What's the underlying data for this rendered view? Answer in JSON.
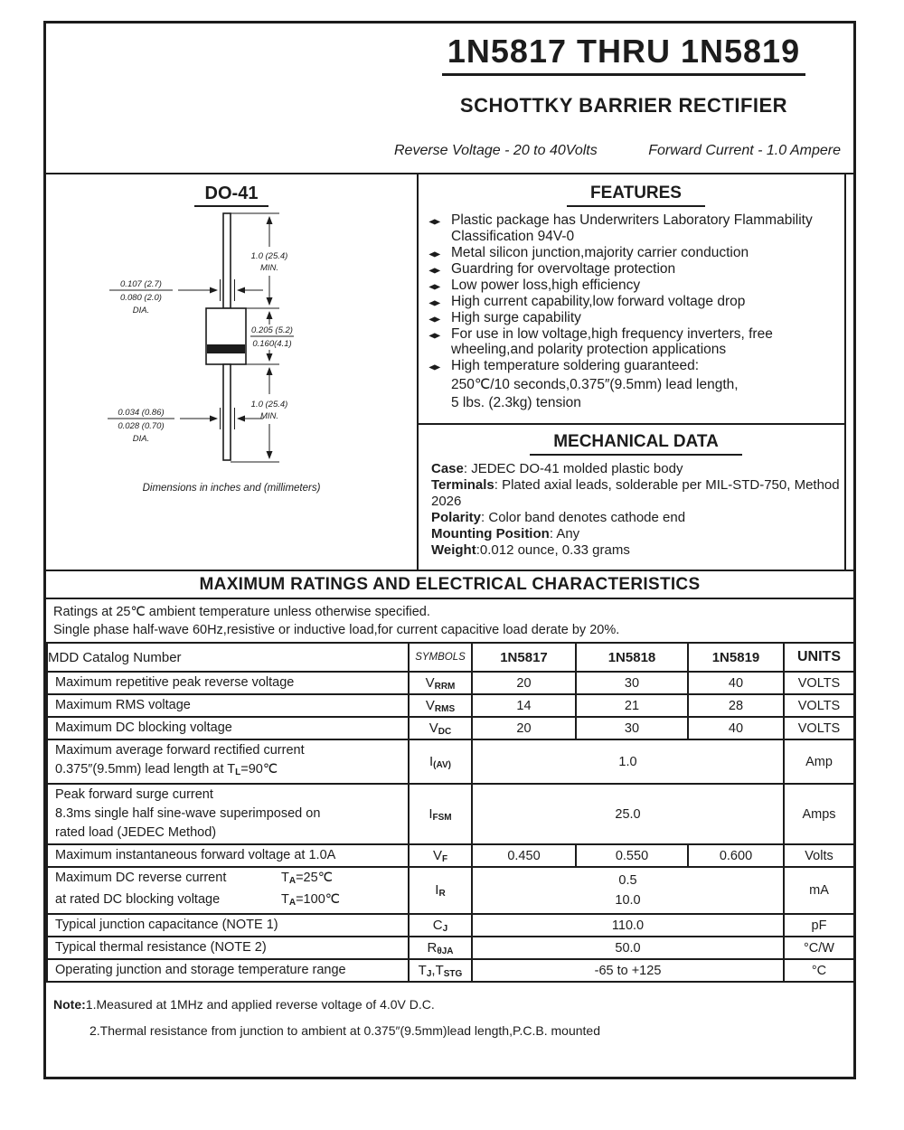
{
  "header": {
    "part_range": "1N5817 THRU 1N5819",
    "subtitle": "SCHOTTKY BARRIER RECTIFIER",
    "tagline_left": "Reverse Voltage - 20 to 40Volts",
    "tagline_right": "Forward Current - 1.0 Ampere"
  },
  "package_diagram": {
    "title": "DO-41",
    "caption": "Dimensions in inches and (millimeters)",
    "dims": {
      "top_lead_length": [
        "1.0 (25.4)",
        "MIN."
      ],
      "top_lead_dia": [
        "0.107 (2.7)",
        "0.080 (2.0)",
        "DIA."
      ],
      "body_length": [
        "0.205 (5.2)",
        "0.160(4.1)"
      ],
      "bottom_lead_length": [
        "1.0 (25.4)",
        "MIN."
      ],
      "bottom_lead_dia": [
        "0.034 (0.86)",
        "0.028 (0.70)",
        "DIA."
      ]
    }
  },
  "features": {
    "title": "FEATURES",
    "bullet_glyph": "◆",
    "items": [
      {
        "text": "Plastic package has Underwriters Laboratory Flammability Classification 94V-0"
      },
      {
        "text": "Metal silicon junction,majority carrier conduction"
      },
      {
        "text": "Guardring for overvoltage protection"
      },
      {
        "text": "Low power loss,high efficiency"
      },
      {
        "text": "High current capability,low forward voltage drop"
      },
      {
        "text": "High surge capability"
      },
      {
        "text": "For use in low voltage,high frequency inverters, free wheeling,and polarity protection applications"
      },
      {
        "text": "High temperature soldering guaranteed:",
        "extra": [
          "250℃/10 seconds,0.375″(9.5mm) lead length,",
          "5 lbs. (2.3kg) tension"
        ]
      }
    ]
  },
  "mechanical": {
    "title": "MECHANICAL DATA",
    "items": [
      {
        "label": "Case",
        "value": ": JEDEC DO-41 molded plastic body"
      },
      {
        "label": "Terminals",
        "value": ": Plated axial leads, solderable per MIL-STD-750, Method 2026"
      },
      {
        "label": "Polarity",
        "value": ": Color band denotes cathode end"
      },
      {
        "label": "Mounting Position",
        "value": ": Any"
      },
      {
        "label": "Weight",
        "value": ":0.012 ounce, 0.33 grams"
      }
    ]
  },
  "ratings_section": {
    "title": "MAXIMUM RATINGS AND ELECTRICAL CHARACTERISTICS",
    "conditions": [
      "Ratings at 25℃ ambient temperature unless otherwise specified.",
      "Single phase half-wave 60Hz,resistive or inductive load,for current capacitive load derate by 20%."
    ]
  },
  "table": {
    "headers": {
      "catalog": "MDD Catalog  Number",
      "symbols": "SYMBOLS",
      "part1": "1N5817",
      "part2": "1N5818",
      "part3": "1N5819",
      "units": "UNITS"
    },
    "rows": [
      {
        "cls": "r-std",
        "label": [
          "Maximum repetitive peak reverse voltage"
        ],
        "symbol": "V_{RRM}",
        "values": [
          "20",
          "30",
          "40"
        ],
        "units": "VOLTS"
      },
      {
        "cls": "r-std",
        "label": [
          "Maximum RMS voltage"
        ],
        "symbol": "V_{RMS}",
        "values": [
          "14",
          "21",
          "28"
        ],
        "units": "VOLTS"
      },
      {
        "cls": "r-std",
        "label": [
          "Maximum DC blocking voltage"
        ],
        "symbol": "V_{DC}",
        "values": [
          "20",
          "30",
          "40"
        ],
        "units": "VOLTS"
      },
      {
        "cls": "r-iav",
        "label": [
          "Maximum average forward rectified current",
          "0.375″(9.5mm) lead length at T_{L}=90℃"
        ],
        "symbol": "I_{(AV)}",
        "span": "1.0",
        "units": "Amp"
      },
      {
        "cls": "r-ifsm",
        "label": [
          "Peak forward surge current",
          "8.3ms single half sine-wave superimposed on",
          "rated load (JEDEC Method)"
        ],
        "symbol": "I_{FSM}",
        "span": "25.0",
        "units": "Amps"
      },
      {
        "cls": "r-std",
        "label": [
          "Maximum instantaneous forward voltage at 1.0A"
        ],
        "symbol": "V_{F}",
        "values": [
          "0.450",
          "0.550",
          "0.600"
        ],
        "units": "Volts"
      },
      {
        "cls": "r-ir",
        "label": [
          {
            "left": "Maximum DC reverse current",
            "right": "T_{A}=25℃"
          },
          {
            "left": "at rated DC blocking voltage",
            "right": "T_{A}=100℃"
          }
        ],
        "symbol": "I_{R}",
        "span_lines": [
          "0.5",
          "10.0"
        ],
        "units": "mA"
      },
      {
        "cls": "r-std",
        "label": [
          "Typical junction capacitance (NOTE 1)"
        ],
        "symbol": "C_{J}",
        "span": "110.0",
        "units": "pF"
      },
      {
        "cls": "r-std",
        "label": [
          "Typical thermal resistance (NOTE 2)"
        ],
        "symbol": "R_{θJA}",
        "span": "50.0",
        "units": "°C/W"
      },
      {
        "cls": "r-std",
        "label": [
          "Operating junction and storage temperature range"
        ],
        "symbol": "T_{J},T_{STG}",
        "span": "-65 to +125",
        "units": "°C"
      }
    ]
  },
  "notes": {
    "label": "Note:",
    "line1": "1.Measured at 1MHz and applied reverse voltage of 4.0V D.C.",
    "line2": "2.Thermal resistance from junction to ambient  at 0.375″(9.5mm)lead length,P.C.B. mounted"
  }
}
